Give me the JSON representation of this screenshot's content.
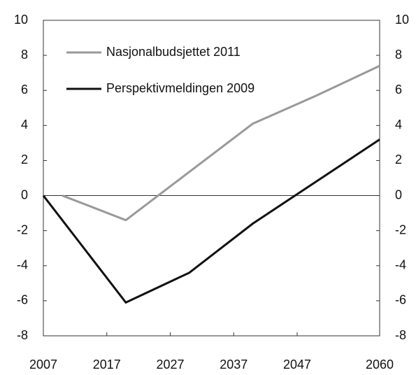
{
  "chart_data": {
    "type": "line",
    "series": [
      {
        "name": "Nasjonalbudsjettet 2011",
        "color": "#999999",
        "x": [
          2010,
          2020,
          2040,
          2050,
          2060
        ],
        "values": [
          0,
          -1.4,
          4.1,
          5.7,
          7.4
        ]
      },
      {
        "name": "Perspektivmeldingen 2009",
        "color": "#111111",
        "x": [
          2007,
          2020,
          2030,
          2040,
          2060
        ],
        "values": [
          0,
          -6.1,
          -4.4,
          -1.6,
          3.2
        ]
      }
    ],
    "xlim": [
      2007,
      2060
    ],
    "xticks": [
      2007,
      2017,
      2027,
      2037,
      2047,
      2060
    ],
    "ylim": [
      -8,
      10
    ],
    "yticks": [
      -8,
      -6,
      -4,
      -2,
      0,
      2,
      4,
      6,
      8,
      10
    ],
    "y2lim": [
      -8,
      10
    ],
    "y2ticks": [
      -8,
      -6,
      -4,
      -2,
      0,
      2,
      4,
      6,
      8,
      10
    ],
    "legend": "upper left"
  }
}
